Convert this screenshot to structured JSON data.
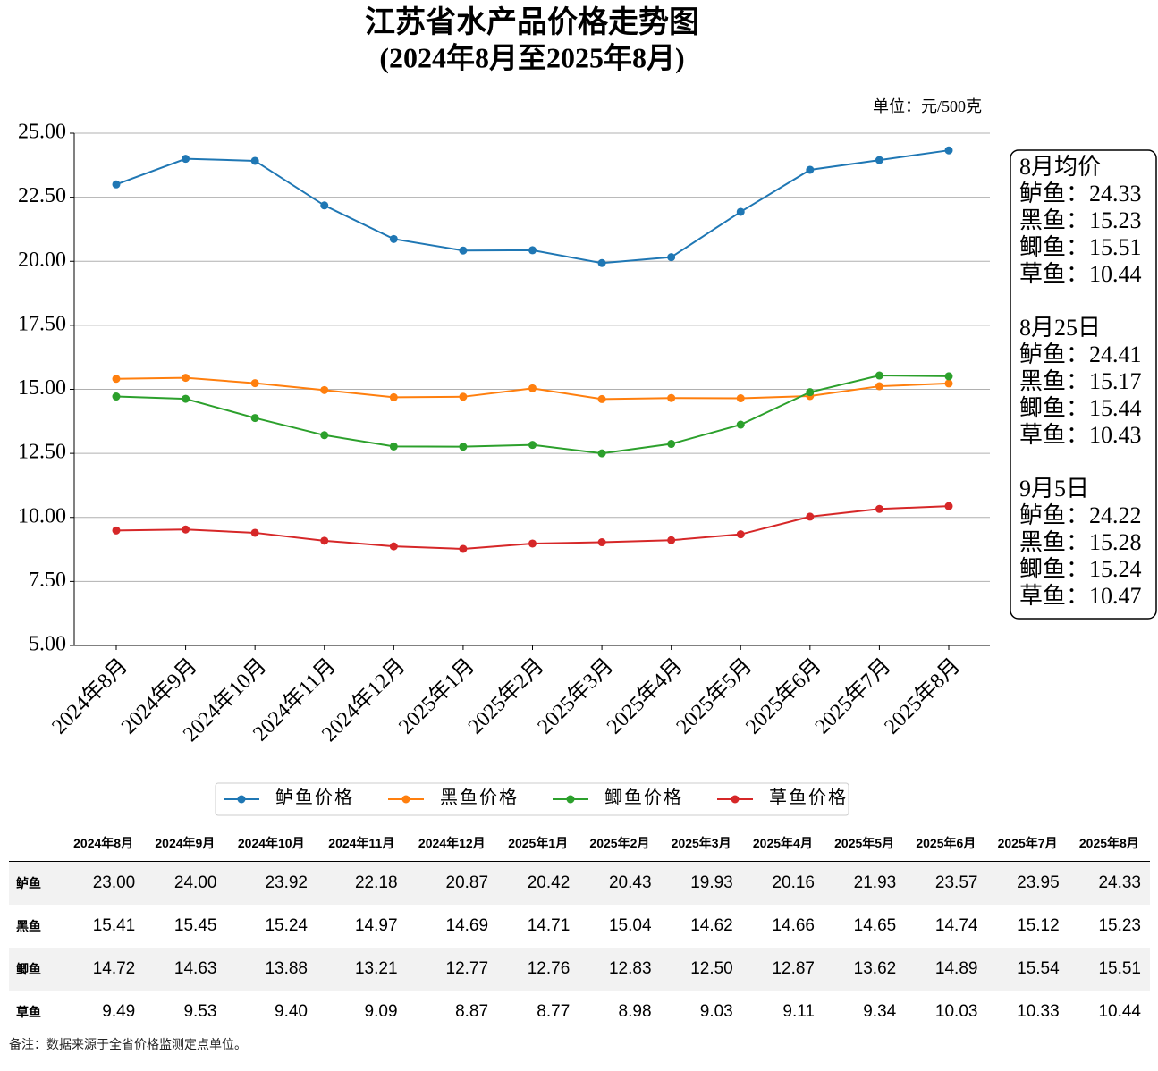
{
  "chart_data": {
    "type": "line",
    "title": "江苏省水产品价格走势图",
    "subtitle": "(2024年8月至2025年8月)",
    "unit": "单位：元/500克",
    "categories": [
      "2024年8月",
      "2024年9月",
      "2024年10月",
      "2024年11月",
      "2024年12月",
      "2025年1月",
      "2025年2月",
      "2025年3月",
      "2025年4月",
      "2025年5月",
      "2025年6月",
      "2025年7月",
      "2025年8月"
    ],
    "ylim": [
      5,
      25
    ],
    "yticks": [
      {
        "value": 5,
        "label": "5.00"
      },
      {
        "value": 7.5,
        "label": "7.50"
      },
      {
        "value": 10,
        "label": "10.00"
      },
      {
        "value": 12.5,
        "label": "12.50"
      },
      {
        "value": 15,
        "label": "15.00"
      },
      {
        "value": 17.5,
        "label": "17.50"
      },
      {
        "value": 20,
        "label": "20.00"
      },
      {
        "value": 22.5,
        "label": "22.50"
      },
      {
        "value": 25,
        "label": "25.00"
      }
    ],
    "grid": true,
    "legend": "bottom",
    "series": [
      {
        "name": "鲈鱼价格",
        "color": "#1f77b4",
        "values": [
          23.0,
          24.0,
          23.92,
          22.18,
          20.87,
          20.42,
          20.43,
          19.93,
          20.16,
          21.93,
          23.57,
          23.95,
          24.33
        ],
        "value_labels": [
          "23.00",
          "24.00",
          "23.92",
          "22.18",
          "20.87",
          "20.42",
          "20.43",
          "19.93",
          "20.16",
          "21.93",
          "23.57",
          "23.95",
          "24.33"
        ]
      },
      {
        "name": "黑鱼价格",
        "color": "#ff7f0e",
        "values": [
          15.41,
          15.45,
          15.24,
          14.97,
          14.69,
          14.71,
          15.04,
          14.62,
          14.66,
          14.65,
          14.74,
          15.12,
          15.23
        ],
        "value_labels": [
          "15.41",
          "15.45",
          "15.24",
          "14.97",
          "14.69",
          "14.71",
          "15.04",
          "14.62",
          "14.66",
          "14.65",
          "14.74",
          "15.12",
          "15.23"
        ]
      },
      {
        "name": "鲫鱼价格",
        "color": "#2ca02c",
        "values": [
          14.72,
          14.63,
          13.88,
          13.21,
          12.77,
          12.76,
          12.83,
          12.5,
          12.87,
          13.62,
          14.89,
          15.54,
          15.51
        ],
        "value_labels": [
          "14.72",
          "14.63",
          "13.88",
          "13.21",
          "12.77",
          "12.76",
          "12.83",
          "12.50",
          "12.87",
          "13.62",
          "14.89",
          "15.54",
          "15.51"
        ]
      },
      {
        "name": "草鱼价格",
        "color": "#d62728",
        "values": [
          9.49,
          9.53,
          9.4,
          9.09,
          8.87,
          8.77,
          8.98,
          9.03,
          9.11,
          9.34,
          10.03,
          10.33,
          10.44
        ],
        "value_labels": [
          "9.49",
          "9.53",
          "9.40",
          "9.09",
          "8.87",
          "8.77",
          "8.98",
          "9.03",
          "9.11",
          "9.34",
          "10.03",
          "10.33",
          "10.44"
        ]
      }
    ],
    "annotation": [
      {
        "title": "8月均价",
        "items": [
          "鲈鱼：24.33",
          "黑鱼：15.23",
          "鲫鱼：15.51",
          "草鱼：10.44"
        ]
      },
      {
        "title": "8月25日",
        "items": [
          "鲈鱼：24.41",
          "黑鱼：15.17",
          "鲫鱼：15.44",
          "草鱼：10.43"
        ]
      },
      {
        "title": "9月5日",
        "items": [
          "鲈鱼：24.22",
          "黑鱼：15.28",
          "鲫鱼：15.24",
          "草鱼：10.47"
        ]
      }
    ],
    "table": {
      "rows": [
        "鲈鱼",
        "黑鱼",
        "鲫鱼",
        "草鱼"
      ]
    },
    "note": "备注：数据来源于全省价格监测定点单位。"
  }
}
